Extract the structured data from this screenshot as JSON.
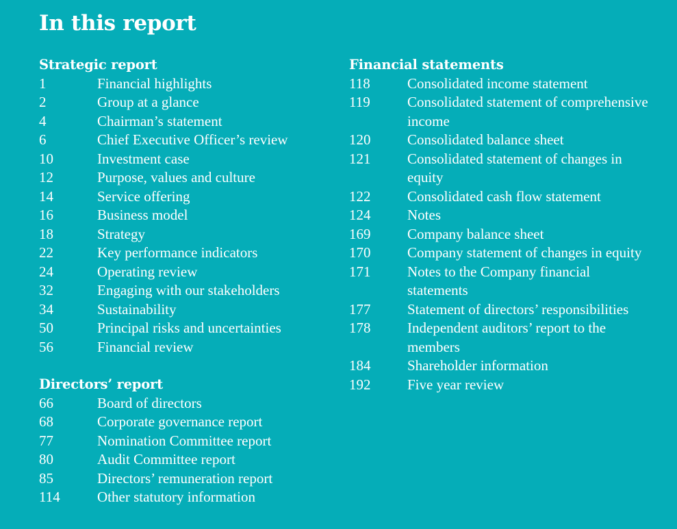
{
  "title": "In this report",
  "sections": {
    "strategic": {
      "heading": "Strategic report",
      "entries": [
        {
          "page": "1",
          "label": "Financial highlights"
        },
        {
          "page": "2",
          "label": "Group at a glance"
        },
        {
          "page": "4",
          "label": "Chairman’s statement"
        },
        {
          "page": "6",
          "label": "Chief Executive Officer’s review"
        },
        {
          "page": "10",
          "label": "Investment case"
        },
        {
          "page": "12",
          "label": "Purpose, values and culture"
        },
        {
          "page": "14",
          "label": "Service offering"
        },
        {
          "page": "16",
          "label": "Business model"
        },
        {
          "page": "18",
          "label": "Strategy"
        },
        {
          "page": "22",
          "label": "Key performance indicators"
        },
        {
          "page": "24",
          "label": "Operating review"
        },
        {
          "page": "32",
          "label": "Engaging with our stakeholders"
        },
        {
          "page": "34",
          "label": "Sustainability"
        },
        {
          "page": "50",
          "label": "Principal risks and uncertainties"
        },
        {
          "page": "56",
          "label": "Financial review"
        }
      ]
    },
    "directors": {
      "heading": "Directors’ report",
      "entries": [
        {
          "page": "66",
          "label": "Board of directors"
        },
        {
          "page": "68",
          "label": "Corporate governance report"
        },
        {
          "page": "77",
          "label": "Nomination Committee report"
        },
        {
          "page": "80",
          "label": "Audit Committee report"
        },
        {
          "page": "85",
          "label": "Directors’ remuneration report"
        },
        {
          "page": "114",
          "label": "Other statutory information"
        }
      ]
    },
    "financial": {
      "heading": "Financial statements",
      "entries": [
        {
          "page": "118",
          "label": "Consolidated income statement"
        },
        {
          "page": "119",
          "label": "Consolidated statement of comprehensive income"
        },
        {
          "page": "120",
          "label": "Consolidated balance sheet"
        },
        {
          "page": "121",
          "label": "Consolidated statement of changes in equity"
        },
        {
          "page": "122",
          "label": "Consolidated cash flow statement"
        },
        {
          "page": "124",
          "label": "Notes"
        },
        {
          "page": "169",
          "label": "Company balance sheet"
        },
        {
          "page": "170",
          "label": "Company statement of changes in equity"
        },
        {
          "page": "171",
          "label": "Notes to the Company financial statements"
        },
        {
          "page": "177",
          "label": "Statement of directors’ responsibilities"
        },
        {
          "page": "178",
          "label": "Independent auditors’ report to the members"
        },
        {
          "page": "184",
          "label": "Shareholder information"
        },
        {
          "page": "192",
          "label": "Five year review"
        }
      ]
    }
  },
  "colors": {
    "background": "#05adb8",
    "text": "#ffffff"
  }
}
